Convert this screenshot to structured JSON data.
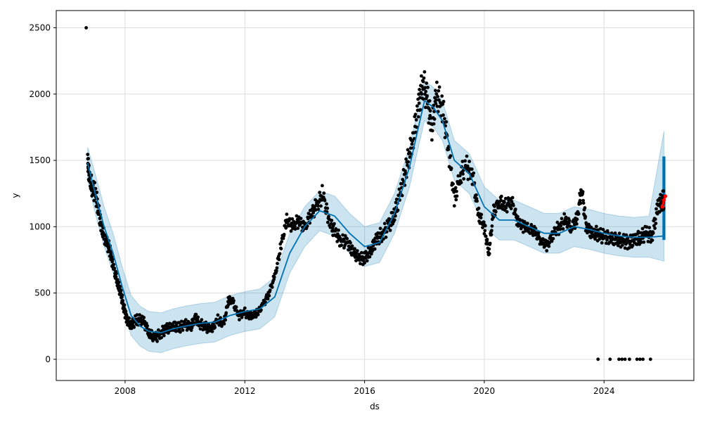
{
  "chart_data": {
    "type": "line",
    "title": "",
    "xlabel": "ds",
    "ylabel": "y",
    "xlim": [
      2005.7,
      2027.0
    ],
    "ylim": [
      -160,
      2630
    ],
    "grid": true,
    "x_ticks": [
      2008,
      2012,
      2016,
      2020,
      2024
    ],
    "x_tick_labels": [
      "2008",
      "2012",
      "2016",
      "2020",
      "2024"
    ],
    "y_ticks": [
      0,
      500,
      1000,
      1500,
      2000,
      2500
    ],
    "y_tick_labels": [
      "0",
      "500",
      "1000",
      "1500",
      "2000",
      "2500"
    ],
    "colors": {
      "observed": "#000000",
      "forecast": "#0072B2",
      "interval": "#0072B2",
      "highlight": "#FF0000",
      "grid": "#dddddd"
    },
    "series": [
      {
        "role": "observed",
        "x": [
          2006.75,
          2006.8,
          2006.9,
          2007.0,
          2007.1,
          2007.2,
          2007.35,
          2007.5,
          2007.6,
          2007.75,
          2007.85,
          2007.95,
          2008.05,
          2008.2,
          2008.4,
          2008.6,
          2008.8,
          2009.0,
          2009.2,
          2009.4,
          2009.6,
          2009.8,
          2010.0,
          2010.2,
          2010.35,
          2010.5,
          2010.7,
          2010.9,
          2011.1,
          2011.3,
          2011.45,
          2011.6,
          2011.8,
          2012.0,
          2012.2,
          2012.4,
          2012.6,
          2012.8,
          2013.0,
          2013.2,
          2013.4,
          2013.6,
          2013.8,
          2014.0,
          2014.2,
          2014.4,
          2014.6,
          2014.8,
          2015.0,
          2015.2,
          2015.4,
          2015.6,
          2015.8,
          2016.0,
          2016.2,
          2016.4,
          2016.6,
          2016.8,
          2017.0,
          2017.2,
          2017.4,
          2017.6,
          2017.8,
          2017.95,
          2018.1,
          2018.25,
          2018.4,
          2018.6,
          2018.8,
          2019.0,
          2019.2,
          2019.4,
          2019.6,
          2019.8,
          2020.0,
          2020.15,
          2020.3,
          2020.5,
          2020.7,
          2020.9,
          2021.1,
          2021.3,
          2021.5,
          2021.7,
          2021.9,
          2022.1,
          2022.3,
          2022.5,
          2022.7,
          2022.9,
          2023.1,
          2023.25,
          2023.4,
          2023.6,
          2023.8,
          2024.0,
          2024.2,
          2024.4,
          2024.6,
          2024.8,
          2025.0,
          2025.2,
          2025.4,
          2025.6,
          2025.8,
          2025.95
        ],
        "y": [
          1500,
          1380,
          1300,
          1250,
          1150,
          1000,
          900,
          820,
          700,
          580,
          500,
          400,
          300,
          260,
          300,
          290,
          200,
          160,
          200,
          230,
          250,
          240,
          260,
          250,
          310,
          270,
          240,
          230,
          300,
          260,
          450,
          430,
          330,
          350,
          320,
          350,
          400,
          500,
          620,
          850,
          1050,
          1000,
          1050,
          980,
          1100,
          1150,
          1250,
          1050,
          960,
          900,
          880,
          820,
          760,
          760,
          820,
          900,
          950,
          1000,
          1100,
          1250,
          1450,
          1650,
          1900,
          2100,
          1950,
          1750,
          2000,
          1900,
          1600,
          1200,
          1400,
          1450,
          1400,
          1100,
          1000,
          800,
          1100,
          1200,
          1150,
          1200,
          1050,
          1000,
          1000,
          950,
          900,
          850,
          950,
          1000,
          1050,
          1000,
          1050,
          1300,
          1000,
          950,
          950,
          920,
          920,
          900,
          900,
          880,
          900,
          920,
          950,
          930,
          1150,
          1200
        ]
      },
      {
        "role": "observed-outliers",
        "x": [
          2006.7,
          2023.8,
          2024.2,
          2024.5,
          2024.6,
          2024.7,
          2024.85,
          2025.1,
          2025.2,
          2025.3,
          2025.55
        ],
        "y": [
          2500,
          0,
          0,
          0,
          0,
          0,
          0,
          0,
          0,
          0,
          0
        ]
      },
      {
        "role": "forecast",
        "x": [
          2006.75,
          2007.0,
          2007.3,
          2007.6,
          2007.9,
          2008.2,
          2008.5,
          2008.8,
          2009.2,
          2009.6,
          2010.0,
          2010.5,
          2011.0,
          2011.5,
          2012.0,
          2012.5,
          2013.0,
          2013.5,
          2014.0,
          2014.5,
          2015.0,
          2015.5,
          2016.0,
          2016.5,
          2017.0,
          2017.5,
          2017.8,
          2018.0,
          2018.3,
          2018.6,
          2019.0,
          2019.5,
          2020.0,
          2020.5,
          2021.0,
          2021.5,
          2022.0,
          2022.5,
          2023.0,
          2023.5,
          2024.0,
          2024.5,
          2025.0,
          2025.5,
          2026.0
        ],
        "y": [
          1480,
          1250,
          1000,
          800,
          550,
          330,
          250,
          210,
          200,
          230,
          250,
          270,
          280,
          330,
          360,
          380,
          470,
          800,
          1000,
          1120,
          1080,
          950,
          850,
          880,
          1100,
          1450,
          1750,
          1950,
          1900,
          1800,
          1500,
          1400,
          1150,
          1050,
          1050,
          1000,
          950,
          950,
          1000,
          980,
          950,
          930,
          920,
          920,
          930
        ],
        "lower": [
          1350,
          1100,
          850,
          650,
          400,
          180,
          100,
          60,
          50,
          80,
          100,
          120,
          130,
          180,
          210,
          230,
          320,
          650,
          850,
          970,
          930,
          800,
          700,
          730,
          950,
          1300,
          1600,
          1800,
          1750,
          1650,
          1350,
          1250,
          1000,
          900,
          900,
          850,
          800,
          800,
          850,
          830,
          800,
          780,
          770,
          770,
          740
        ],
        "upper": [
          1600,
          1400,
          1150,
          950,
          700,
          480,
          400,
          360,
          350,
          380,
          400,
          420,
          430,
          480,
          510,
          530,
          620,
          950,
          1150,
          1270,
          1230,
          1100,
          1000,
          1030,
          1250,
          1600,
          1900,
          2100,
          2050,
          1950,
          1650,
          1550,
          1300,
          1200,
          1200,
          1150,
          1100,
          1100,
          1150,
          1130,
          1100,
          1080,
          1070,
          1080,
          1720
        ]
      },
      {
        "role": "forecast-band-end",
        "x": [
          2025.95,
          2026.05
        ],
        "lower": [
          900,
          900
        ],
        "upper": [
          1530,
          1520
        ]
      },
      {
        "role": "highlight",
        "x": [
          2025.95,
          2026.0,
          2026.05
        ],
        "y": [
          1150,
          1200,
          1230
        ]
      }
    ]
  }
}
